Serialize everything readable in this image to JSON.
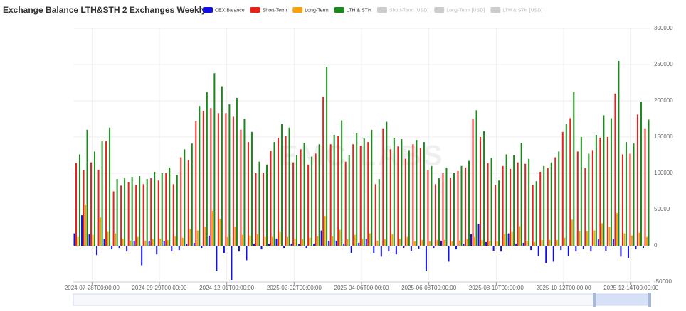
{
  "chart_data": {
    "type": "bar",
    "title": "Exchange Balance LTH&STH 2 Exchanges Weekly",
    "watermark": "EMC LABS",
    "categories": [
      null,
      null,
      "2024-07-28T00:00:00",
      null,
      null,
      null,
      null,
      null,
      null,
      null,
      null,
      "2024-09-29T00:00:00",
      null,
      null,
      null,
      null,
      null,
      null,
      null,
      null,
      "2024-12-01T00:00:00",
      null,
      null,
      null,
      null,
      null,
      null,
      null,
      null,
      "2025-02-02T00:00:00",
      null,
      null,
      null,
      null,
      null,
      null,
      null,
      null,
      "2025-04-06T00:00:00",
      null,
      null,
      null,
      null,
      null,
      null,
      null,
      null,
      "2025-06-08T00:00:00",
      null,
      null,
      null,
      null,
      null,
      null,
      null,
      null,
      "2025-08-10T00:00:00",
      null,
      null,
      null,
      null,
      null,
      null,
      null,
      null,
      "2025-10-12T00:00:00",
      null,
      null,
      null,
      null,
      null,
      null,
      null,
      null,
      "2025-12-14T00:00:00",
      null,
      null
    ],
    "series": [
      {
        "name": "CEX Balance",
        "color": "#1010e0",
        "visible": true,
        "values": [
          17000,
          42000,
          16000,
          -13000,
          9000,
          -5000,
          -3000,
          -8000,
          7000,
          -27000,
          7000,
          -12000,
          6000,
          -8000,
          -6000,
          2000,
          4000,
          -3000,
          14000,
          -35000,
          -10000,
          -48000,
          -8000,
          -20000,
          3000,
          -5000,
          3000,
          10000,
          -3000,
          3000,
          2000,
          -3000,
          3000,
          21000,
          7000,
          7000,
          3000,
          -10000,
          4000,
          9000,
          -10000,
          -15000,
          -8000,
          -12000,
          -3000,
          -7000,
          -4000,
          -35000,
          -3000,
          7000,
          -22000,
          -5000,
          3000,
          16000,
          30000,
          5000,
          -7000,
          -8000,
          17000,
          3000,
          4000,
          -6000,
          -14000,
          -24000,
          -22000,
          -6000,
          -14000,
          -8000,
          -4000,
          -8000,
          9000,
          -7000,
          9000,
          -15000,
          -17000,
          -5000,
          -3000
        ]
      },
      {
        "name": "Short-Term",
        "color": "#e8211b",
        "visible": true,
        "values": [
          114000,
          104000,
          115000,
          105000,
          144000,
          75000,
          83000,
          88000,
          84000,
          85000,
          93000,
          90000,
          100000,
          85000,
          122000,
          118000,
          172000,
          186000,
          190000,
          183000,
          183000,
          178000,
          160000,
          143000,
          100000,
          100000,
          131000,
          149000,
          151000,
          115000,
          133000,
          112000,
          127000,
          206000,
          140000,
          151000,
          116000,
          140000,
          138000,
          143000,
          85000,
          162000,
          133000,
          137000,
          120000,
          140000,
          135000,
          104000,
          85000,
          100000,
          94000,
          103000,
          108000,
          175000,
          150000,
          114000,
          84000,
          110000,
          106000,
          115000,
          113000,
          84000,
          102000,
          107000,
          122000,
          157000,
          176000,
          130000,
          107000,
          132000,
          149000,
          150000,
          210000,
          126000,
          127000,
          181000,
          162000
        ]
      },
      {
        "name": "Long-Term",
        "color": "#f5a20c",
        "visible": true,
        "values": [
          12000,
          56000,
          15000,
          39000,
          19000,
          17000,
          10000,
          7000,
          12000,
          7000,
          9000,
          10000,
          8000,
          13000,
          11000,
          23000,
          21000,
          26000,
          48000,
          37000,
          12000,
          26000,
          15000,
          14000,
          16000,
          12000,
          12000,
          19000,
          12000,
          10000,
          9000,
          11000,
          13000,
          41000,
          13000,
          22000,
          9000,
          15000,
          10000,
          17000,
          7000,
          9000,
          16000,
          10000,
          12000,
          6000,
          8000,
          6000,
          8000,
          8000,
          6000,
          7000,
          9000,
          12000,
          8000,
          7000,
          6000,
          16000,
          19000,
          27000,
          7000,
          5000,
          8000,
          8000,
          8000,
          11000,
          36000,
          20000,
          20000,
          21000,
          31000,
          26000,
          45000,
          17000,
          14000,
          18000,
          12000
        ]
      },
      {
        "name": "LTH & STH",
        "color": "#198a19",
        "visible": true,
        "values": [
          126000,
          160000,
          130000,
          144000,
          163000,
          92000,
          93000,
          95000,
          96000,
          92000,
          102000,
          100000,
          108000,
          98000,
          133000,
          141000,
          193000,
          212000,
          238000,
          220000,
          195000,
          204000,
          175000,
          157000,
          116000,
          112000,
          143000,
          168000,
          163000,
          125000,
          142000,
          123000,
          140000,
          247000,
          153000,
          173000,
          125000,
          155000,
          148000,
          160000,
          92000,
          171000,
          149000,
          147000,
          132000,
          146000,
          143000,
          110000,
          93000,
          108000,
          100000,
          110000,
          117000,
          187000,
          158000,
          121000,
          90000,
          126000,
          125000,
          142000,
          120000,
          89000,
          110000,
          115000,
          130000,
          168000,
          212000,
          150000,
          127000,
          153000,
          180000,
          176000,
          255000,
          143000,
          141000,
          199000,
          174000
        ]
      },
      {
        "name": "Short-Term [USD]",
        "color": "#cccccc",
        "visible": false
      },
      {
        "name": "Long-Term [USD]",
        "color": "#cccccc",
        "visible": false
      },
      {
        "name": "LTH & STH [USD]",
        "color": "#cccccc",
        "visible": false
      }
    ],
    "ylim": [
      -50000,
      300000
    ],
    "yticks": [
      -50000,
      0,
      50000,
      100000,
      150000,
      200000,
      250000,
      300000
    ],
    "grid": true,
    "legend": "top"
  }
}
